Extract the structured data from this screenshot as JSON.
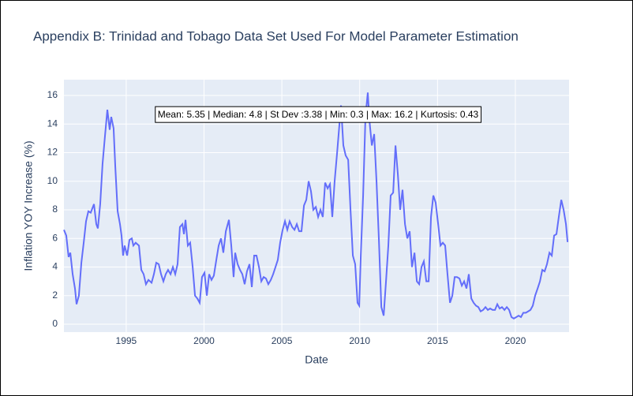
{
  "chart_data": {
    "type": "line",
    "title": "Appendix B: Trinidad and Tobago Data Set Used For Model Parameter Estimation",
    "x_label": "Date",
    "y_label": "Inflation YOY Increase (%)",
    "annotation": "Mean: 5.35 | Median: 4.8 | St Dev :3.38 | Min: 0.3 | Max: 16.2 | Kurtosis: 0.43",
    "xlim": [
      1991.0,
      2023.45
    ],
    "xticks": [
      1995,
      2000,
      2005,
      2010,
      2015,
      2020
    ],
    "ylim": [
      -0.55,
      17.1
    ],
    "yticks": [
      0,
      2,
      4,
      6,
      8,
      10,
      12,
      14,
      16
    ],
    "grid": true,
    "x": [
      1991.0,
      1991.15,
      1991.3,
      1991.41,
      1991.56,
      1991.71,
      1991.81,
      1991.96,
      1992.12,
      1992.27,
      1992.42,
      1992.57,
      1992.72,
      1992.93,
      1993.08,
      1993.18,
      1993.33,
      1993.48,
      1993.64,
      1993.79,
      1993.94,
      1994.04,
      1994.19,
      1994.3,
      1994.45,
      1994.6,
      1994.7,
      1994.8,
      1994.9,
      1995.06,
      1995.21,
      1995.36,
      1995.46,
      1995.61,
      1995.82,
      1995.97,
      1996.12,
      1996.27,
      1996.43,
      1996.63,
      1996.78,
      1996.93,
      1997.09,
      1997.24,
      1997.39,
      1997.54,
      1997.69,
      1997.85,
      1998.0,
      1998.15,
      1998.3,
      1998.45,
      1998.61,
      1998.71,
      1998.81,
      1998.96,
      1999.11,
      1999.27,
      1999.42,
      1999.57,
      1999.72,
      1999.87,
      2000.03,
      2000.18,
      2000.33,
      2000.48,
      2000.63,
      2000.79,
      2000.94,
      2001.09,
      2001.24,
      2001.4,
      2001.6,
      2001.75,
      2001.9,
      2002.0,
      2002.16,
      2002.31,
      2002.46,
      2002.61,
      2002.76,
      2002.92,
      2003.07,
      2003.22,
      2003.37,
      2003.53,
      2003.68,
      2003.83,
      2003.98,
      2004.13,
      2004.29,
      2004.44,
      2004.59,
      2004.74,
      2004.89,
      2005.05,
      2005.2,
      2005.35,
      2005.5,
      2005.66,
      2005.81,
      2005.96,
      2006.11,
      2006.26,
      2006.42,
      2006.57,
      2006.72,
      2006.87,
      2007.02,
      2007.18,
      2007.33,
      2007.48,
      2007.63,
      2007.78,
      2007.94,
      2008.09,
      2008.24,
      2008.39,
      2008.55,
      2008.7,
      2008.8,
      2008.95,
      2009.1,
      2009.26,
      2009.41,
      2009.56,
      2009.71,
      2009.86,
      2009.97,
      2010.07,
      2010.22,
      2010.37,
      2010.52,
      2010.62,
      2010.78,
      2010.93,
      2011.08,
      2011.23,
      2011.39,
      2011.54,
      2011.69,
      2011.84,
      2011.99,
      2012.15,
      2012.3,
      2012.45,
      2012.6,
      2012.75,
      2012.91,
      2013.06,
      2013.21,
      2013.36,
      2013.52,
      2013.67,
      2013.82,
      2013.97,
      2014.12,
      2014.28,
      2014.43,
      2014.58,
      2014.73,
      2014.88,
      2015.04,
      2015.19,
      2015.34,
      2015.49,
      2015.64,
      2015.8,
      2015.95,
      2016.1,
      2016.25,
      2016.41,
      2016.56,
      2016.71,
      2016.86,
      2017.01,
      2017.17,
      2017.32,
      2017.47,
      2017.62,
      2017.77,
      2017.93,
      2018.08,
      2018.23,
      2018.38,
      2018.54,
      2018.69,
      2018.84,
      2018.99,
      2019.14,
      2019.3,
      2019.45,
      2019.6,
      2019.75,
      2019.9,
      2020.06,
      2020.21,
      2020.36,
      2020.51,
      2020.67,
      2020.82,
      2020.97,
      2021.12,
      2021.27,
      2021.43,
      2021.58,
      2021.73,
      2021.88,
      2022.03,
      2022.19,
      2022.34,
      2022.49,
      2022.64,
      2022.79,
      2022.95,
      2023.1,
      2023.25,
      2023.35,
      2023.4
    ],
    "series": [
      {
        "color": "#636efa",
        "values": [
          6.6,
          6.2,
          4.7,
          5.0,
          3.5,
          2.5,
          1.4,
          2.0,
          4.3,
          5.7,
          7.2,
          7.9,
          7.8,
          8.4,
          7.0,
          6.7,
          8.4,
          11.2,
          13.2,
          15.0,
          13.6,
          14.5,
          13.7,
          11.0,
          7.9,
          7.0,
          6.2,
          4.8,
          5.5,
          4.8,
          5.9,
          6.0,
          5.5,
          5.7,
          5.5,
          3.8,
          3.5,
          2.8,
          3.1,
          2.9,
          3.5,
          4.3,
          4.2,
          3.5,
          3.0,
          3.5,
          3.8,
          3.5,
          4.0,
          3.5,
          4.2,
          6.8,
          7.0,
          6.3,
          7.3,
          5.5,
          5.7,
          4.0,
          2.0,
          1.8,
          1.5,
          3.3,
          3.6,
          2.0,
          3.5,
          3.1,
          3.4,
          4.5,
          5.5,
          6.0,
          5.0,
          6.5,
          7.3,
          5.5,
          3.3,
          5.0,
          4.2,
          3.8,
          3.5,
          2.8,
          3.7,
          4.2,
          2.6,
          4.8,
          4.8,
          4.0,
          3.0,
          3.3,
          3.2,
          2.8,
          3.1,
          3.5,
          4.0,
          4.5,
          5.7,
          6.6,
          7.2,
          6.6,
          7.2,
          6.8,
          6.6,
          7.0,
          6.5,
          6.5,
          8.3,
          8.7,
          10.0,
          9.3,
          8.0,
          8.2,
          7.5,
          8.0,
          7.5,
          9.9,
          9.5,
          9.8,
          7.5,
          10.0,
          12.0,
          14.0,
          15.3,
          12.5,
          11.8,
          11.5,
          8.0,
          4.8,
          4.2,
          1.5,
          1.3,
          4.8,
          9.0,
          14.5,
          16.2,
          14.3,
          12.5,
          13.3,
          10.0,
          6.0,
          1.2,
          0.6,
          3.0,
          5.5,
          9.0,
          9.2,
          12.5,
          10.5,
          8.0,
          9.4,
          7.0,
          6.0,
          6.5,
          4.0,
          5.0,
          3.0,
          2.8,
          4.0,
          4.4,
          3.0,
          3.0,
          7.5,
          9.0,
          8.5,
          7.0,
          5.5,
          5.7,
          5.5,
          3.5,
          1.5,
          2.0,
          3.3,
          3.3,
          3.2,
          2.7,
          3.0,
          2.5,
          3.5,
          1.8,
          1.5,
          1.3,
          1.2,
          0.9,
          1.0,
          1.2,
          1.0,
          1.1,
          1.0,
          1.0,
          1.4,
          1.1,
          1.2,
          1.0,
          1.2,
          1.0,
          0.5,
          0.4,
          0.5,
          0.6,
          0.5,
          0.8,
          0.8,
          0.9,
          1.0,
          1.3,
          2.0,
          2.5,
          3.0,
          3.8,
          3.7,
          4.2,
          5.0,
          4.8,
          6.2,
          6.3,
          7.5,
          8.7,
          8.0,
          7.0,
          5.8,
          5.8
        ]
      }
    ]
  }
}
